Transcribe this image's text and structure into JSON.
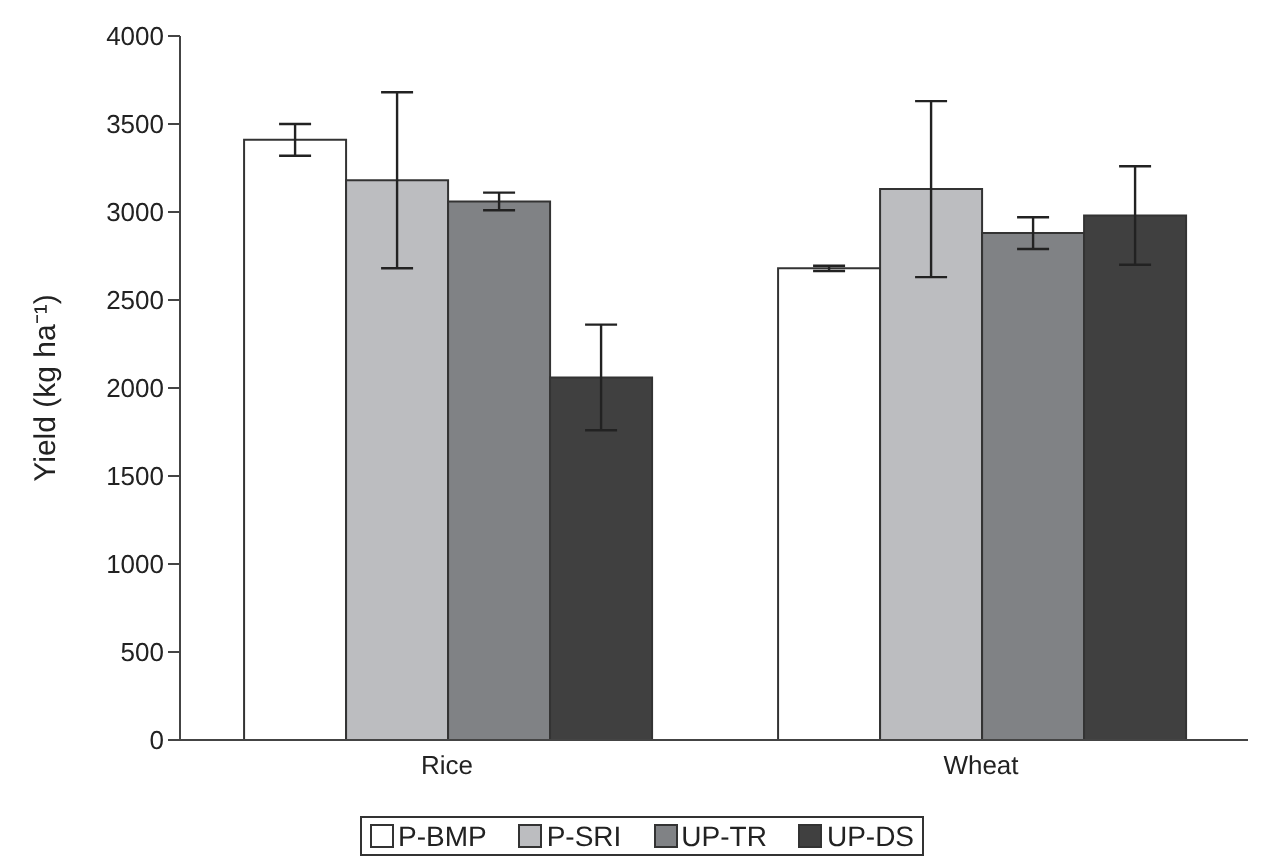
{
  "chart_data": {
    "type": "bar",
    "ylabel": "Yield (kg ha⁻¹)",
    "categories": [
      "Rice",
      "Wheat"
    ],
    "series": [
      {
        "name": "P-BMP",
        "color": "#ffffff",
        "values": [
          3410,
          2680
        ],
        "errors": [
          90,
          15
        ]
      },
      {
        "name": "P-SRI",
        "color": "#bcbdc0",
        "values": [
          3180,
          3130
        ],
        "errors": [
          500,
          500
        ]
      },
      {
        "name": "UP-TR",
        "color": "#808285",
        "values": [
          3060,
          2880
        ],
        "errors": [
          50,
          90
        ]
      },
      {
        "name": "UP-DS",
        "color": "#404040",
        "values": [
          2060,
          2980
        ],
        "errors": [
          300,
          280
        ]
      }
    ],
    "ylim": [
      0,
      4000
    ],
    "yticks": [
      0,
      500,
      1000,
      1500,
      2000,
      2500,
      3000,
      3500,
      4000
    ],
    "grid": false,
    "legend": "bottom"
  }
}
